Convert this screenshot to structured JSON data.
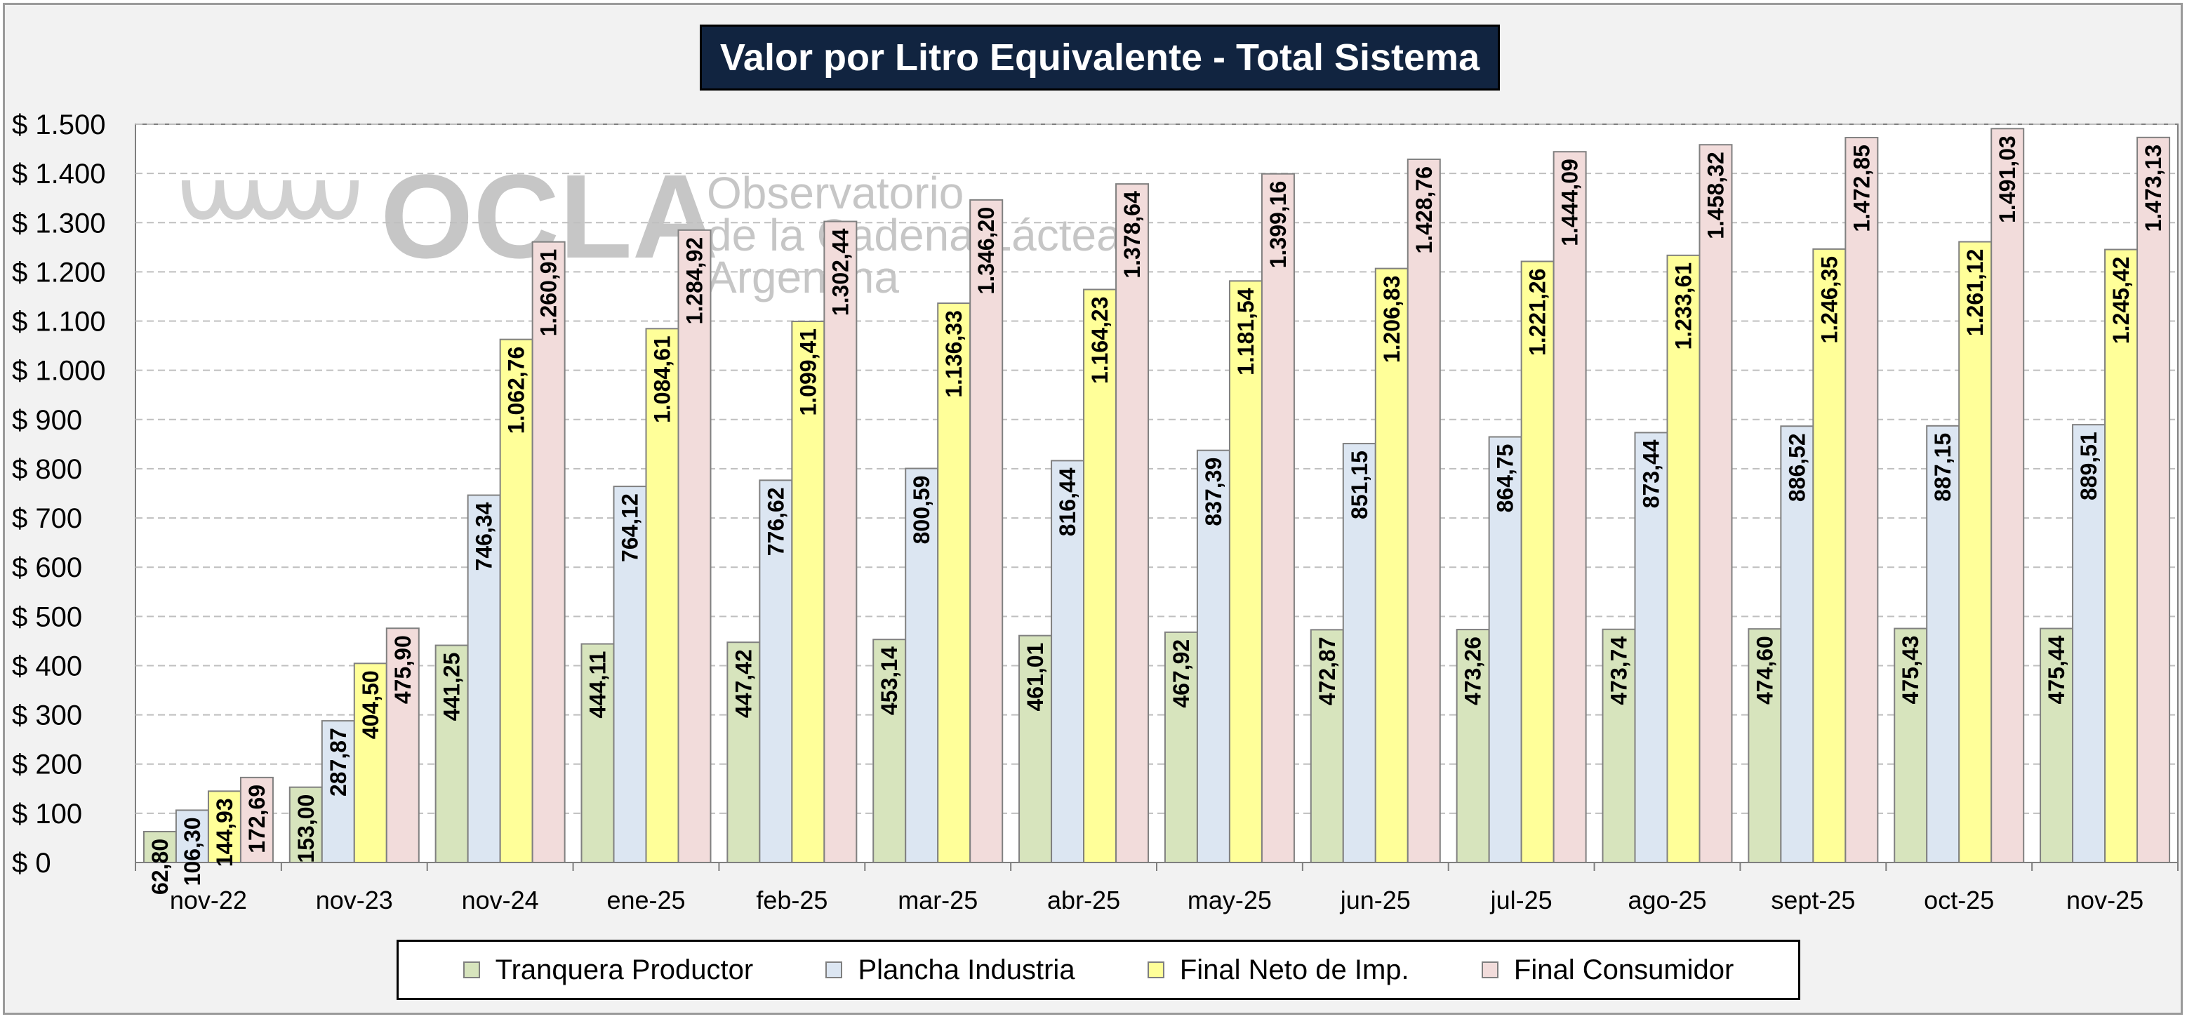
{
  "title": "Valor por Litro Equivalente - Total Sistema",
  "watermark": {
    "brand": "OCLA",
    "line1": "Observatorio",
    "line2": "de la Cadena Láctea",
    "line3": "Argentina"
  },
  "chart_data": {
    "type": "bar",
    "title": "Valor por Litro Equivalente - Total Sistema",
    "xlabel": "",
    "ylabel": "",
    "ylim": [
      0,
      1500
    ],
    "yticks": [
      0,
      100,
      200,
      300,
      400,
      500,
      600,
      700,
      800,
      900,
      1000,
      1100,
      1200,
      1300,
      1400,
      1500
    ],
    "ytick_labels": [
      "$ 0",
      "$ 100",
      "$ 200",
      "$ 300",
      "$ 400",
      "$ 500",
      "$ 600",
      "$ 700",
      "$ 800",
      "$ 900",
      "$ 1.000",
      "$ 1.100",
      "$ 1.200",
      "$ 1.300",
      "$ 1.400",
      "$ 1.500"
    ],
    "grid": true,
    "legend_position": "bottom",
    "categories": [
      "nov-22",
      "nov-23",
      "nov-24",
      "ene-25",
      "feb-25",
      "mar-25",
      "abr-25",
      "may-25",
      "jun-25",
      "jul-25",
      "ago-25",
      "sept-25",
      "oct-25",
      "nov-25"
    ],
    "series": [
      {
        "name": "Tranquera Productor",
        "color": "#d7e4bd",
        "values": [
          62.8,
          153.0,
          441.25,
          444.11,
          447.42,
          453.14,
          461.01,
          467.92,
          472.87,
          473.26,
          473.74,
          474.6,
          475.43,
          475.44
        ],
        "labels": [
          "62,80",
          "153,00",
          "441,25",
          "444,11",
          "447,42",
          "453,14",
          "461,01",
          "467,92",
          "472,87",
          "473,26",
          "473,74",
          "474,60",
          "475,43",
          "475,44"
        ]
      },
      {
        "name": "Plancha Industria",
        "color": "#dce6f2",
        "values": [
          106.3,
          287.87,
          746.34,
          764.12,
          776.62,
          800.59,
          816.44,
          837.39,
          851.15,
          864.75,
          873.44,
          886.52,
          887.15,
          889.51
        ],
        "labels": [
          "106,30",
          "287,87",
          "746,34",
          "764,12",
          "776,62",
          "800,59",
          "816,44",
          "837,39",
          "851,15",
          "864,75",
          "873,44",
          "886,52",
          "887,15",
          "889,51"
        ]
      },
      {
        "name": "Final Neto de Imp.",
        "color": "#ffff99",
        "values": [
          144.93,
          404.5,
          1062.76,
          1084.61,
          1099.41,
          1136.33,
          1164.23,
          1181.54,
          1206.83,
          1221.26,
          1233.61,
          1246.35,
          1261.12,
          1245.42
        ],
        "labels": [
          "144,93",
          "404,50",
          "1.062,76",
          "1.084,61",
          "1.099,41",
          "1.136,33",
          "1.164,23",
          "1.181,54",
          "1.206,83",
          "1.221,26",
          "1.233,61",
          "1.246,35",
          "1.261,12",
          "1.245,42"
        ]
      },
      {
        "name": "Final Consumidor",
        "color": "#f2dcdb",
        "values": [
          172.69,
          475.9,
          1260.91,
          1284.92,
          1302.44,
          1346.2,
          1378.64,
          1399.16,
          1428.76,
          1444.09,
          1458.32,
          1472.85,
          1491.03,
          1473.13
        ],
        "labels": [
          "172,69",
          "475,90",
          "1.260,91",
          "1.284,92",
          "1.302,44",
          "1.346,20",
          "1.378,64",
          "1.399,16",
          "1.428,76",
          "1.444,09",
          "1.458,32",
          "1.472,85",
          "1.491,03",
          "1.473,13"
        ]
      }
    ]
  }
}
